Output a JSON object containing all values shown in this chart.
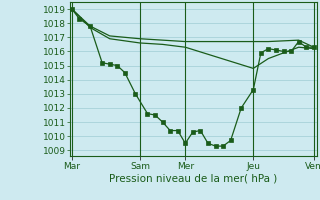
{
  "bg_color": "#ceeaf0",
  "grid_color": "#b8dce6",
  "line_color": "#1a5c1a",
  "marker_color": "#1a5c1a",
  "xlabel": "Pression niveau de la mer( hPa )",
  "xlabel_color": "#1a5c1a",
  "xtick_labels": [
    "Mar",
    "Sam",
    "Mer",
    "Jeu",
    "Ven"
  ],
  "xtick_positions": [
    0,
    4.5,
    7.5,
    12,
    16
  ],
  "ylim": [
    1008.6,
    1019.5
  ],
  "yticks": [
    1009,
    1010,
    1011,
    1012,
    1013,
    1014,
    1015,
    1016,
    1017,
    1018,
    1019
  ],
  "vlines": [
    0,
    4.5,
    7.5,
    12,
    16
  ],
  "line1_x": [
    0,
    0.5,
    1.2,
    2.0,
    2.5,
    3.0,
    3.5,
    4.2,
    5.0,
    5.5,
    6.0,
    6.5,
    7.0,
    7.5,
    8.0,
    8.5,
    9.0,
    9.5,
    10.0,
    10.5,
    11.2,
    12.0,
    12.5,
    13.0,
    13.5,
    14.0,
    14.5,
    15.0,
    15.5,
    16.0
  ],
  "line1_y": [
    1019.0,
    1018.3,
    1017.8,
    1015.2,
    1015.1,
    1015.0,
    1014.5,
    1013.0,
    1011.6,
    1011.5,
    1011.0,
    1010.4,
    1010.4,
    1009.5,
    1010.3,
    1010.4,
    1009.5,
    1009.3,
    1009.3,
    1009.7,
    1012.0,
    1013.3,
    1015.9,
    1016.2,
    1016.1,
    1016.0,
    1016.0,
    1016.7,
    1016.3,
    1016.3
  ],
  "line2_x": [
    0,
    1.2,
    2.5,
    4.5,
    6.0,
    7.5,
    12.0,
    13.0,
    15.0,
    16.0
  ],
  "line2_y": [
    1019.0,
    1017.8,
    1017.1,
    1016.9,
    1016.8,
    1016.7,
    1016.7,
    1016.7,
    1016.8,
    1016.3
  ],
  "line3_x": [
    0,
    1.2,
    2.5,
    4.5,
    6.0,
    7.5,
    12.0,
    13.0,
    15.0,
    16.0
  ],
  "line3_y": [
    1019.0,
    1017.7,
    1016.9,
    1016.6,
    1016.5,
    1016.3,
    1014.8,
    1015.5,
    1016.3,
    1016.2
  ],
  "tick_color": "#1a5c1a",
  "tick_fontsize": 6.5,
  "xlabel_fontsize": 7.5
}
